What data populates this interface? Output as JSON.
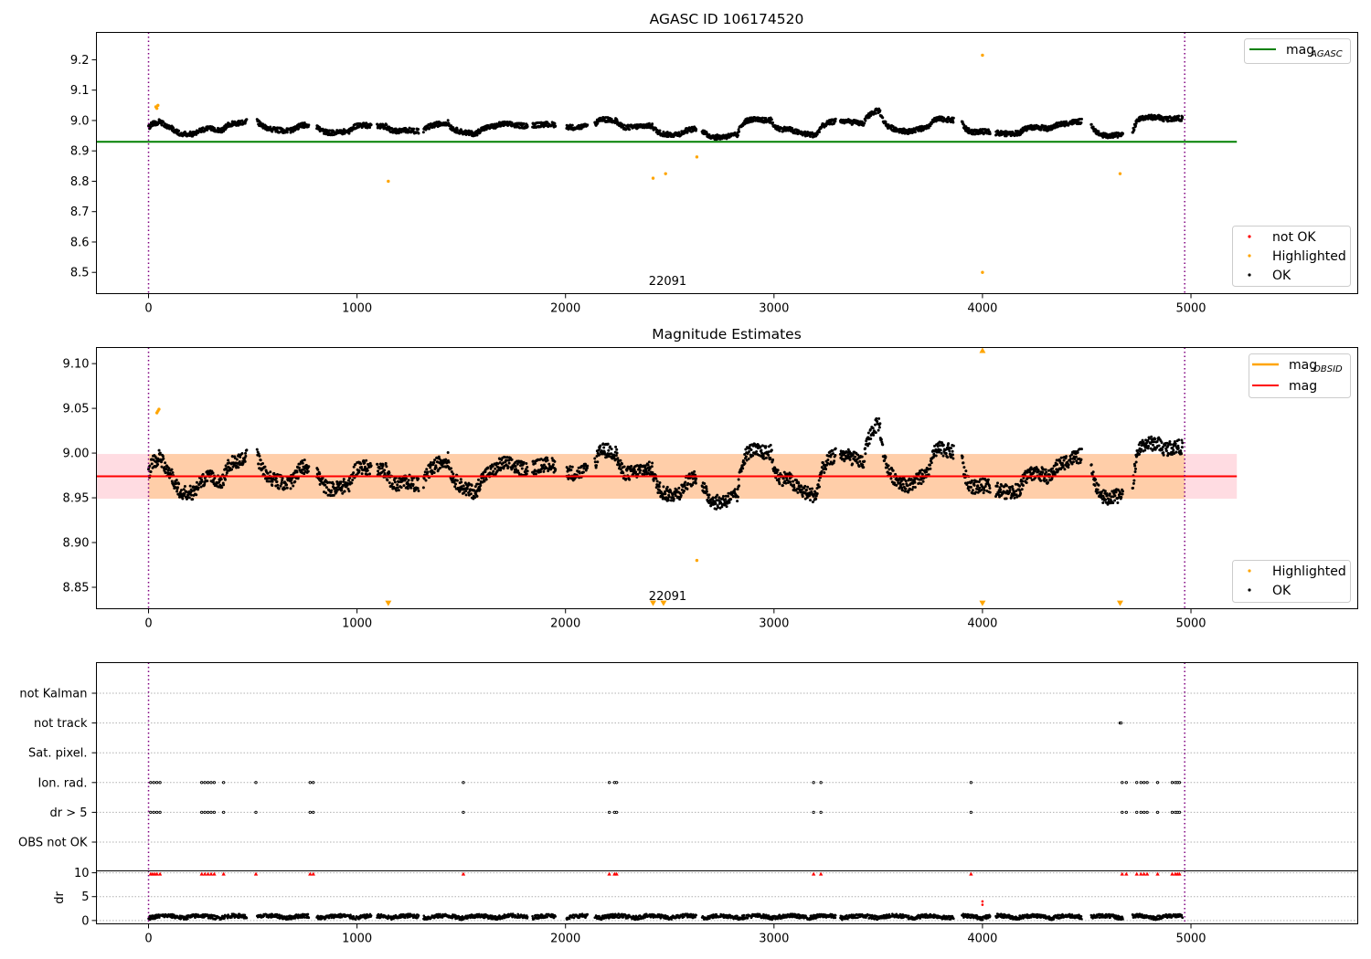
{
  "chart_data": [
    {
      "type": "scatter",
      "title": "AGASC ID 106174520",
      "xlim": [
        -250,
        5800
      ],
      "ylim": [
        8.43,
        9.29
      ],
      "xticks": [
        0,
        1000,
        2000,
        3000,
        4000,
        5000
      ],
      "yticks": [
        "8.5",
        "8.6",
        "8.7",
        "8.8",
        "8.9",
        "9.0",
        "9.1",
        "9.2"
      ],
      "obsid_annotation": {
        "text": "22091",
        "x": 2490
      },
      "vlines": [
        0,
        4970
      ],
      "hline": {
        "name": "mag",
        "subscript": "AGASC",
        "value": 8.93,
        "x_end": 5220,
        "color": "#008000"
      },
      "legend_top": [
        {
          "label": "mag",
          "sub": "AGASC",
          "color": "#008000"
        }
      ],
      "legend_bottom": [
        {
          "label": "not OK",
          "color": "#ff0000"
        },
        {
          "label": "Highlighted",
          "color": "#ffa500"
        },
        {
          "label": "OK",
          "color": "#000000"
        }
      ],
      "series_ok": {
        "name": "OK",
        "x_range": [
          0,
          4960
        ],
        "baseline": 8.975,
        "noise": 0.03
      },
      "series_highlighted": {
        "name": "Highlighted",
        "x": [
          35,
          40,
          45,
          1150,
          2420,
          2480,
          2630,
          4000,
          4000,
          4660
        ],
        "y": [
          9.045,
          9.04,
          9.05,
          8.8,
          8.81,
          8.825,
          8.88,
          9.215,
          8.5,
          8.825
        ]
      }
    },
    {
      "type": "scatter",
      "title": "Magnitude Estimates",
      "xlim": [
        -250,
        5800
      ],
      "ylim": [
        8.826,
        9.118
      ],
      "xticks": [
        0,
        1000,
        2000,
        3000,
        4000,
        5000
      ],
      "yticks": [
        "8.85",
        "8.90",
        "8.95",
        "9.00",
        "9.05",
        "9.10"
      ],
      "obsid_annotation": {
        "text": "22091",
        "x": 2490
      },
      "vlines": [
        0,
        4970
      ],
      "mag_line": {
        "name": "mag",
        "value": 8.974,
        "x_end": 5220,
        "color": "#ff0000"
      },
      "band": {
        "lo": 8.949,
        "hi": 8.999,
        "x_end": 5220
      },
      "legend_top": [
        {
          "label": "mag",
          "sub": "OBSID",
          "color": "#ffa500"
        },
        {
          "label": "mag",
          "sub": "",
          "color": "#ff0000"
        }
      ],
      "legend_bottom": [
        {
          "label": "Highlighted",
          "color": "#ffa500"
        },
        {
          "label": "OK",
          "color": "#000000"
        }
      ],
      "series_highlighted": {
        "name": "Highlighted",
        "x": [
          40,
          45,
          50,
          1150,
          2420,
          2470,
          2630,
          4000,
          4000,
          4660
        ],
        "y": [
          9.045,
          9.047,
          9.049,
          8.832,
          8.832,
          8.832,
          8.88,
          9.115,
          8.832,
          8.832
        ],
        "marker": [
          "dot",
          "dot",
          "dot",
          "down",
          "down",
          "down",
          "dot",
          "up",
          "down",
          "down"
        ]
      }
    },
    {
      "type": "scatter",
      "title": "",
      "xlim": [
        -250,
        5800
      ],
      "xticks": [
        0,
        1000,
        2000,
        3000,
        4000,
        5000
      ],
      "vlines": [
        0,
        4970
      ],
      "flag_rows": [
        "not Kalman",
        "not track",
        "Sat. pixel.",
        "Ion. rad.",
        "dr > 5",
        "OBS not OK"
      ],
      "flag_points": {
        "not track": [
          4660,
          4665
        ],
        "Ion. rad.": [
          10,
          25,
          40,
          55,
          255,
          270,
          285,
          300,
          315,
          360,
          515,
          775,
          790,
          1510,
          2210,
          2235,
          2245,
          3190,
          3225,
          3945,
          4670,
          4690,
          4740,
          4760,
          4775,
          4790,
          4840,
          4910,
          4925,
          4935,
          4945
        ],
        "dr > 5": [
          10,
          25,
          40,
          55,
          255,
          270,
          285,
          300,
          315,
          360,
          515,
          775,
          790,
          1510,
          2210,
          2235,
          2245,
          3190,
          3225,
          3945,
          4670,
          4690,
          4740,
          4760,
          4775,
          4790,
          4840,
          4910,
          4925,
          4935,
          4945
        ]
      },
      "dr": {
        "ylabel": "dr",
        "yticks": [
          "0",
          "5",
          "10"
        ],
        "ylim": [
          -0.7,
          10.4
        ],
        "clipped_x": [
          10,
          20,
          30,
          40,
          55,
          255,
          270,
          285,
          300,
          315,
          360,
          515,
          775,
          790,
          1510,
          2210,
          2235,
          2245,
          3190,
          3225,
          3945,
          4670,
          4690,
          4740,
          4760,
          4775,
          4790,
          4840,
          4910,
          4925,
          4935,
          4945
        ],
        "outliers": {
          "x": [
            4000,
            4000
          ],
          "y": [
            4.0,
            3.3
          ]
        }
      }
    }
  ]
}
